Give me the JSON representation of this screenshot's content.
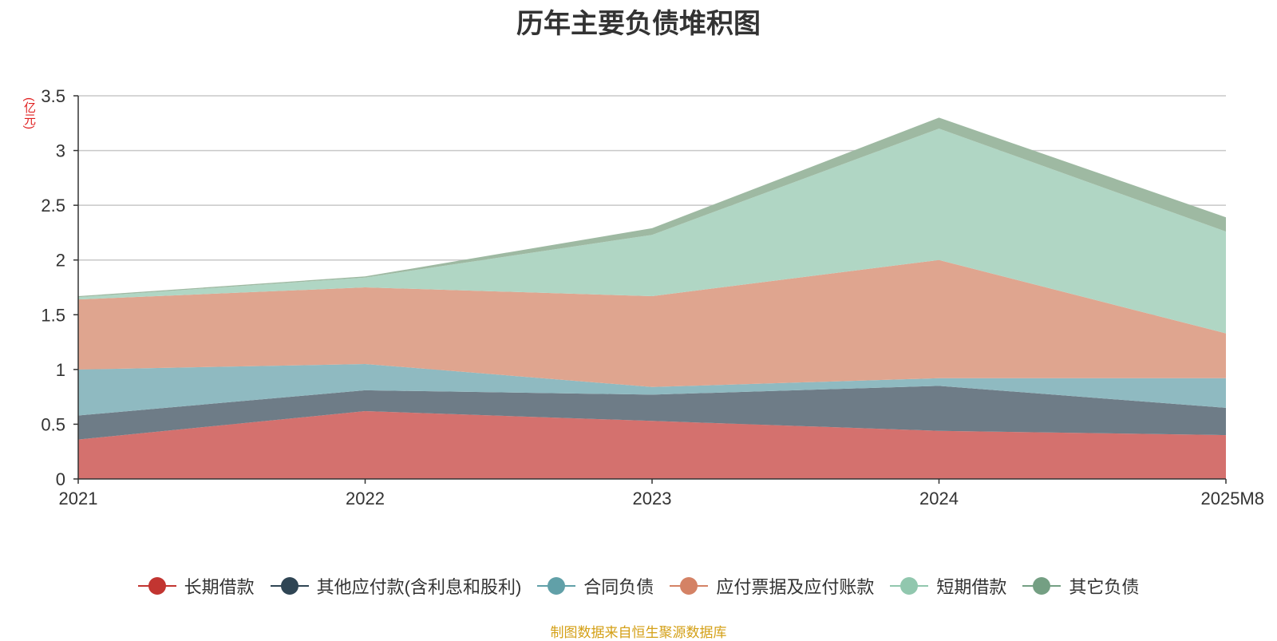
{
  "title": "历年主要负债堆积图",
  "unit_label": "(亿元)",
  "source_text": "制图数据来自恒生聚源数据库",
  "chart_data": {
    "type": "area",
    "stacked": true,
    "title": "历年主要负债堆积图",
    "ylabel": "(亿元)",
    "ylim": [
      0,
      3.5
    ],
    "yticks": [
      "0",
      "0.5",
      "1",
      "1.5",
      "2",
      "2.5",
      "3",
      "3.5"
    ],
    "categories": [
      "2021",
      "2022",
      "2023",
      "2024",
      "2025M8"
    ],
    "series": [
      {
        "name": "长期借款",
        "color": "#c23531",
        "fill": "#d4716e",
        "values": [
          0.36,
          0.62,
          0.53,
          0.44,
          0.4
        ]
      },
      {
        "name": "其他应付款(含利息和股利)",
        "color": "#2f4554",
        "fill": "#6e7c87",
        "values": [
          0.22,
          0.19,
          0.24,
          0.41,
          0.25
        ]
      },
      {
        "name": "合同负债",
        "color": "#61a0a8",
        "fill": "#8fbac1",
        "values": [
          0.42,
          0.24,
          0.07,
          0.07,
          0.27
        ]
      },
      {
        "name": "应付票据及应付账款",
        "color": "#d48265",
        "fill": "#dfa58f",
        "values": [
          0.64,
          0.7,
          0.83,
          1.08,
          0.41
        ]
      },
      {
        "name": "短期借款",
        "color": "#91c7ae",
        "fill": "#b0d6c4",
        "values": [
          0.02,
          0.09,
          0.56,
          1.2,
          0.93
        ]
      },
      {
        "name": "其它负债",
        "color": "#749f83",
        "fill": "#9eb9a2",
        "values": [
          0.01,
          0.01,
          0.06,
          0.1,
          0.13
        ]
      }
    ]
  }
}
